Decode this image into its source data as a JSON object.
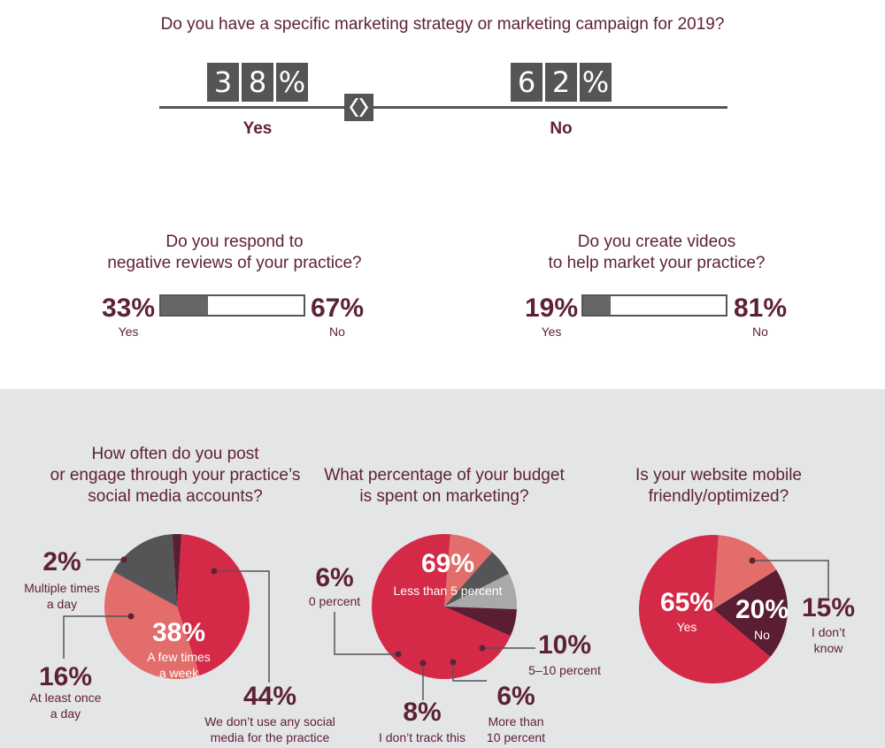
{
  "strategy": {
    "question": "Do you have a specific marketing strategy or marketing campaign for 2019?",
    "yes_digits": [
      "3",
      "8",
      "%"
    ],
    "no_digits": [
      "6",
      "2",
      "%"
    ],
    "yes_label": "Yes",
    "no_label": "No"
  },
  "reviews": {
    "question_line1": "Do you respond to",
    "question_line2": "negative reviews of your practice?",
    "yes_pct": "33%",
    "yes_label": "Yes",
    "no_pct": "67%",
    "no_label": "No"
  },
  "videos": {
    "question_line1": "Do you create videos",
    "question_line2": "to help market your practice?",
    "yes_pct": "19%",
    "yes_label": "Yes",
    "no_pct": "81%",
    "no_label": "No"
  },
  "social": {
    "q1": "How often do you post",
    "q2": "or engage through your practice’s",
    "q3": "social media accounts?",
    "s_multiple_pct": "2%",
    "s_multiple_l1": "Multiple times",
    "s_multiple_l2": "a day",
    "s_once_pct": "16%",
    "s_once_l1": "At least once",
    "s_once_l2": "a day",
    "s_week_pct": "38%",
    "s_week_l1": "A few times",
    "s_week_l2": "a week",
    "s_none_pct": "44%",
    "s_none_l1": "We don’t use any social",
    "s_none_l2": "media for the practice"
  },
  "budget": {
    "q1": "What percentage of your budget",
    "q2": "is spent on marketing?",
    "b_less5_pct": "69%",
    "b_less5_l": "Less than 5 percent",
    "b_zero_pct": "6%",
    "b_zero_l": "0 percent",
    "b_5to10_pct": "10%",
    "b_5to10_l": "5–10 percent",
    "b_more10_pct": "6%",
    "b_more10_l1": "More than",
    "b_more10_l2": "10 percent",
    "b_track_pct": "8%",
    "b_track_l": "I don’t track this"
  },
  "mobile": {
    "q1": "Is your website mobile",
    "q2": "friendly/optimized?",
    "m_yes_pct": "65%",
    "m_yes_l": "Yes",
    "m_no_pct": "20%",
    "m_no_l": "No",
    "m_dk_pct": "15%",
    "m_dk_l1": "I don’t",
    "m_dk_l2": "know"
  },
  "colors": {
    "maroon": "#5e2236",
    "red": "#d42a47",
    "salmon": "#e26d6a",
    "dark_gray": "#555557",
    "light_gray": "#a9a9ab",
    "dark_maroon": "#5a1d33",
    "section_bg": "#e4e5e6"
  },
  "chart_data": [
    {
      "type": "bar",
      "title": "Do you have a specific marketing strategy or marketing campaign for 2019?",
      "categories": [
        "Yes",
        "No"
      ],
      "values": [
        38,
        62
      ],
      "unit": "%"
    },
    {
      "type": "bar",
      "title": "Do you respond to negative reviews of your practice?",
      "categories": [
        "Yes",
        "No"
      ],
      "values": [
        33,
        67
      ],
      "unit": "%"
    },
    {
      "type": "bar",
      "title": "Do you create videos to help market your practice?",
      "categories": [
        "Yes",
        "No"
      ],
      "values": [
        19,
        81
      ],
      "unit": "%"
    },
    {
      "type": "pie",
      "title": "How often do you post or engage through your practice’s social media accounts?",
      "categories": [
        "We don’t use any social media for the practice",
        "A few times a week",
        "At least once a day",
        "Multiple times a day"
      ],
      "values": [
        44,
        38,
        16,
        2
      ]
    },
    {
      "type": "pie",
      "title": "What percentage of your budget is spent on marketing?",
      "categories": [
        "Less than 5 percent",
        "5–10 percent",
        "More than 10 percent",
        "I don’t track this",
        "0 percent"
      ],
      "values": [
        69,
        10,
        6,
        8,
        6
      ]
    },
    {
      "type": "pie",
      "title": "Is your website mobile friendly/optimized?",
      "categories": [
        "I don’t know",
        "No",
        "Yes"
      ],
      "values": [
        15,
        20,
        65
      ]
    }
  ]
}
